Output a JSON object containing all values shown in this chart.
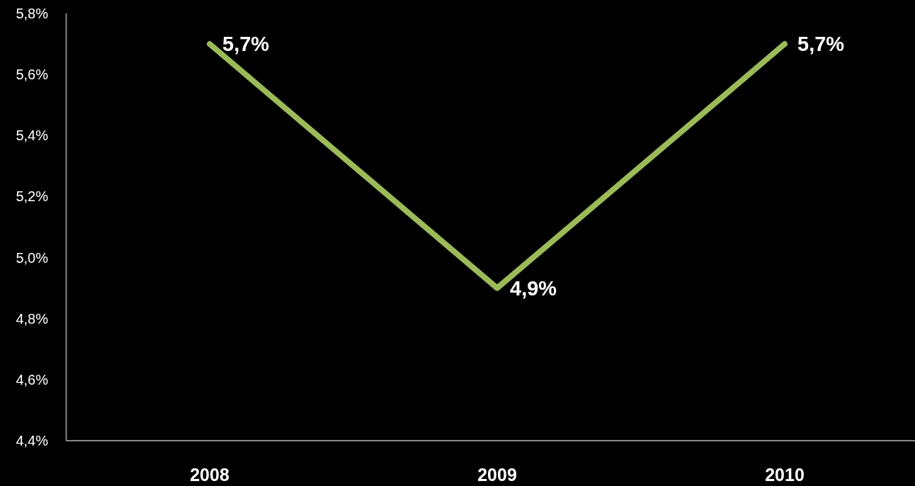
{
  "chart_data": {
    "type": "line",
    "categories": [
      "2008",
      "2009",
      "2010"
    ],
    "series": [
      {
        "color": "#9bbb59",
        "values": [
          5.7,
          4.9,
          5.7
        ],
        "value_labels": [
          "5,7%",
          "4,9%",
          "5,7%"
        ]
      }
    ],
    "ylim": [
      4.4,
      5.8
    ],
    "yticks": [
      {
        "value": 4.4,
        "label": "4,4%"
      },
      {
        "value": 4.6,
        "label": "4,6%"
      },
      {
        "value": 4.8,
        "label": "4,8%"
      },
      {
        "value": 5.0,
        "label": "5,0%"
      },
      {
        "value": 5.2,
        "label": "5,2%"
      },
      {
        "value": 5.4,
        "label": "5,4%"
      },
      {
        "value": 5.6,
        "label": "5,6%"
      },
      {
        "value": 5.8,
        "label": "5,8%"
      }
    ],
    "grid": false,
    "marker": "none",
    "line_style": "solid"
  }
}
